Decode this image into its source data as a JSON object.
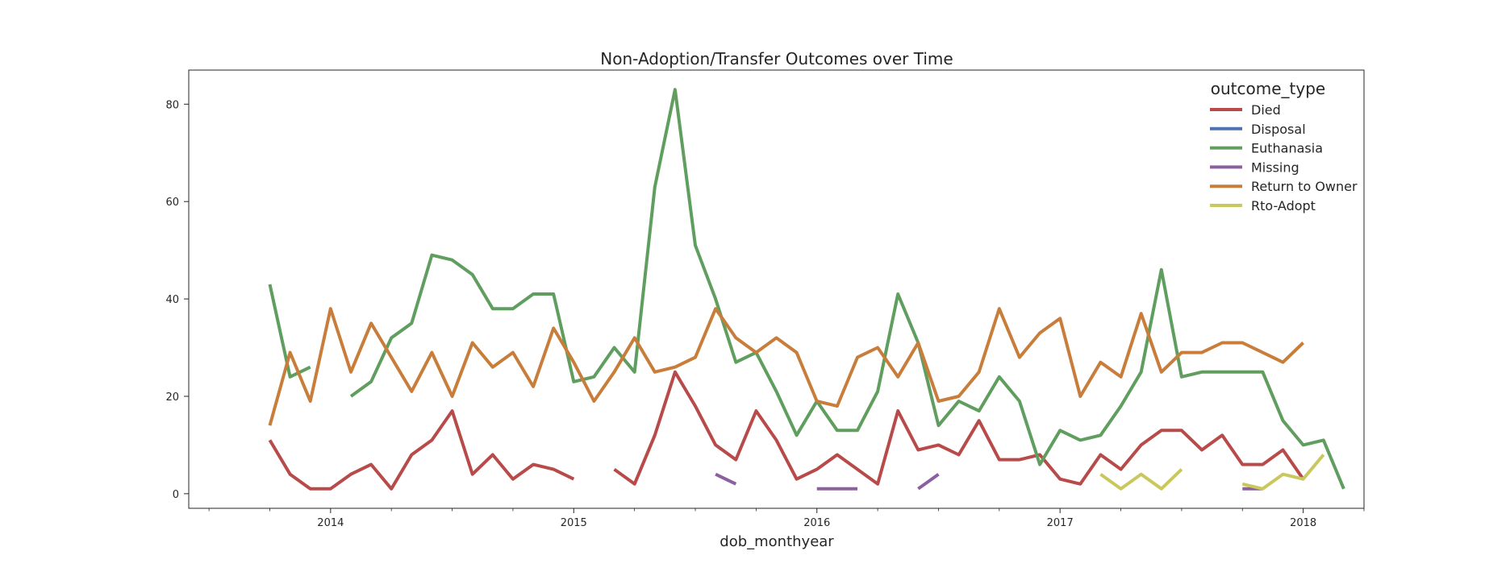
{
  "chart_data": {
    "type": "line",
    "title": "Non-Adoption/Transfer Outcomes over Time",
    "xlabel": "dob_monthyear",
    "ylabel": "",
    "x_start": "2013-10",
    "xlim": [
      "2013-06",
      "2018-04"
    ],
    "ylim": [
      -3,
      87
    ],
    "x_ticks": [
      "2014",
      "2015",
      "2016",
      "2017",
      "2018"
    ],
    "y_ticks": [
      0,
      20,
      40,
      60,
      80
    ],
    "legend_title": "outcome_type",
    "legend_position": "upper-right",
    "grid": false,
    "series": [
      {
        "name": "Died",
        "color": "#b84a4a",
        "values": [
          11,
          4,
          1,
          1,
          4,
          6,
          1,
          8,
          11,
          17,
          4,
          8,
          3,
          6,
          5,
          3,
          null,
          5,
          2,
          12,
          25,
          18,
          10,
          7,
          17,
          11,
          3,
          5,
          8,
          5,
          2,
          17,
          9,
          10,
          8,
          15,
          7,
          7,
          8,
          3,
          2,
          8,
          5,
          10,
          13,
          13,
          9,
          12,
          6,
          6,
          9,
          3
        ]
      },
      {
        "name": "Disposal",
        "color": "#4c72b0",
        "values": []
      },
      {
        "name": "Euthanasia",
        "color": "#5f9e5f",
        "values": [
          43,
          24,
          26,
          null,
          20,
          23,
          32,
          35,
          49,
          48,
          45,
          38,
          38,
          41,
          41,
          23,
          24,
          30,
          25,
          63,
          83,
          51,
          40,
          27,
          29,
          21,
          12,
          19,
          13,
          13,
          21,
          41,
          31,
          14,
          19,
          17,
          24,
          19,
          6,
          13,
          11,
          12,
          18,
          25,
          46,
          24,
          25,
          25,
          25,
          25,
          15,
          10,
          11,
          1
        ]
      },
      {
        "name": "Missing",
        "color": "#8c5f9e",
        "values": [
          null,
          null,
          null,
          null,
          null,
          null,
          null,
          null,
          null,
          null,
          null,
          null,
          null,
          null,
          null,
          null,
          null,
          null,
          null,
          null,
          null,
          null,
          4,
          2,
          null,
          null,
          null,
          1,
          1,
          1,
          null,
          null,
          1,
          4,
          null,
          null,
          null,
          null,
          null,
          null,
          null,
          null,
          null,
          null,
          null,
          null,
          null,
          null,
          1,
          1
        ]
      },
      {
        "name": "Return to Owner",
        "color": "#c87d3a",
        "values": [
          14,
          29,
          19,
          38,
          25,
          35,
          28,
          21,
          29,
          20,
          31,
          26,
          29,
          22,
          34,
          27,
          19,
          25,
          32,
          25,
          26,
          28,
          38,
          32,
          29,
          32,
          29,
          19,
          18,
          28,
          30,
          24,
          31,
          19,
          20,
          25,
          38,
          28,
          33,
          36,
          20,
          27,
          24,
          37,
          25,
          29,
          29,
          31,
          31,
          29,
          27,
          31
        ]
      },
      {
        "name": "Rto-Adopt",
        "color": "#c9c85c",
        "values": [
          null,
          null,
          null,
          null,
          null,
          null,
          null,
          null,
          null,
          null,
          null,
          null,
          null,
          null,
          null,
          null,
          null,
          null,
          null,
          null,
          null,
          null,
          null,
          null,
          null,
          null,
          null,
          null,
          null,
          null,
          null,
          null,
          null,
          null,
          null,
          null,
          null,
          null,
          null,
          null,
          null,
          4,
          1,
          4,
          1,
          5,
          null,
          null,
          2,
          1,
          4,
          3,
          8
        ]
      }
    ]
  }
}
